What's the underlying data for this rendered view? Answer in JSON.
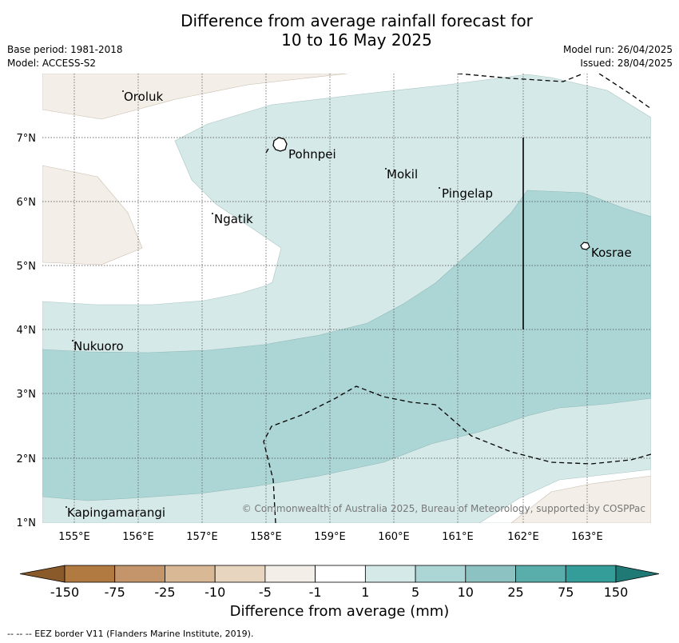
{
  "title": {
    "line1": "Difference from average rainfall forecast for",
    "line2": "10 to 16 May 2025"
  },
  "meta": {
    "base_period": "Base period: 1981-2018",
    "model": "Model: ACCESS-S2",
    "model_run": "Model run: 26/04/2025",
    "issued": "Issued: 28/04/2025"
  },
  "map": {
    "lat_labels": [
      "7°N",
      "6°N",
      "5°N",
      "4°N",
      "3°N",
      "2°N",
      "1°N"
    ],
    "lon_labels": [
      "155°E",
      "156°E",
      "157°E",
      "158°E",
      "159°E",
      "160°E",
      "161°E",
      "162°E",
      "163°E"
    ],
    "places": [
      "Oroluk",
      "Pohnpei",
      "Mokil",
      "Pingelap",
      "Ngatik",
      "Kosrae",
      "Nukuoro",
      "Kapingamarangi"
    ],
    "copyright": "© Commonwealth of Australia 2025, Bureau of Meteorology, supported by COSPPac"
  },
  "colorbar": {
    "tick_labels": [
      "-150",
      "-75",
      "-25",
      "-10",
      "-5",
      "-1",
      "1",
      "5",
      "10",
      "25",
      "75",
      "150"
    ],
    "colors": [
      "#8b5a2b",
      "#b07a40",
      "#c4956a",
      "#d9b896",
      "#e8d5c0",
      "#f3eee7",
      "#ffffff",
      "#d5e9e8",
      "#acd6d5",
      "#8cc3c2",
      "#59aeab",
      "#349d99",
      "#1f7a76"
    ],
    "title": "Difference from average (mm)"
  },
  "footnote": "--  --  -- EEZ border V11 (Flanders Marine Institute, 2019)."
}
